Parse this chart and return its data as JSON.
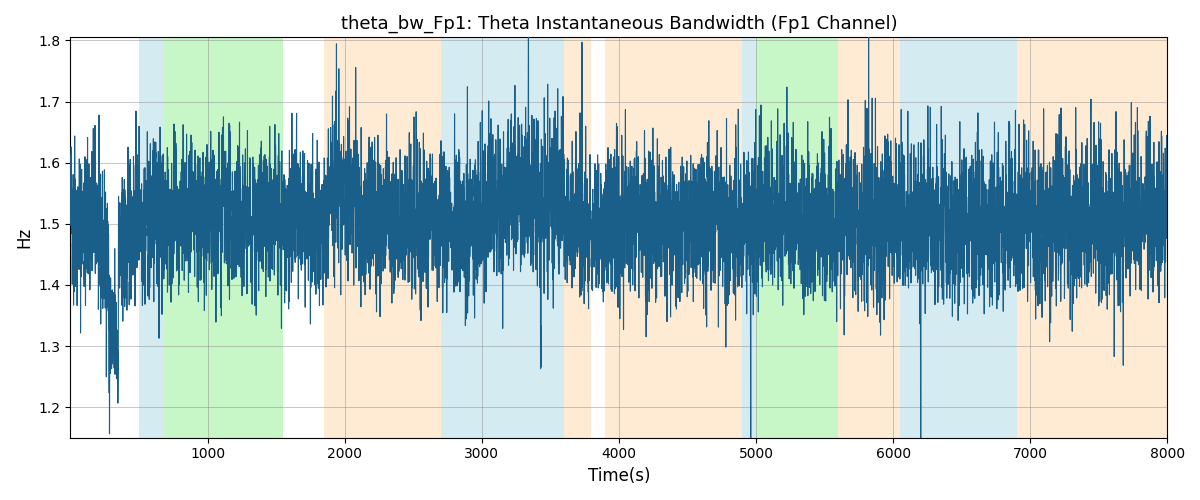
{
  "title": "theta_bw_Fp1: Theta Instantaneous Bandwidth (Fp1 Channel)",
  "xlabel": "Time(s)",
  "ylabel": "Hz",
  "xlim": [
    0,
    8000
  ],
  "ylim": [
    1.15,
    1.805
  ],
  "yticks": [
    1.2,
    1.3,
    1.4,
    1.5,
    1.6,
    1.7,
    1.8
  ],
  "xticks": [
    1000,
    2000,
    3000,
    4000,
    5000,
    6000,
    7000,
    8000
  ],
  "line_color": "#1a5f8a",
  "line_width": 0.8,
  "bg_color": "#ffffff",
  "bands": [
    {
      "start": 500,
      "end": 680,
      "color": "#add8e6",
      "alpha": 0.5
    },
    {
      "start": 680,
      "end": 1550,
      "color": "#90ee90",
      "alpha": 0.5
    },
    {
      "start": 1850,
      "end": 2700,
      "color": "#ffd8a8",
      "alpha": 0.5
    },
    {
      "start": 2700,
      "end": 3600,
      "color": "#add8e6",
      "alpha": 0.5
    },
    {
      "start": 3600,
      "end": 3800,
      "color": "#ffd8a8",
      "alpha": 0.5
    },
    {
      "start": 3900,
      "end": 4900,
      "color": "#ffd8a8",
      "alpha": 0.5
    },
    {
      "start": 4900,
      "end": 5000,
      "color": "#add8e6",
      "alpha": 0.5
    },
    {
      "start": 5000,
      "end": 5600,
      "color": "#90ee90",
      "alpha": 0.5
    },
    {
      "start": 5600,
      "end": 6050,
      "color": "#ffd8a8",
      "alpha": 0.5
    },
    {
      "start": 6050,
      "end": 6900,
      "color": "#add8e6",
      "alpha": 0.5
    },
    {
      "start": 6900,
      "end": 8000,
      "color": "#ffd8a8",
      "alpha": 0.5
    }
  ],
  "seed": 42,
  "n_points": 8000,
  "signal_mean": 1.505,
  "signal_std": 0.09
}
